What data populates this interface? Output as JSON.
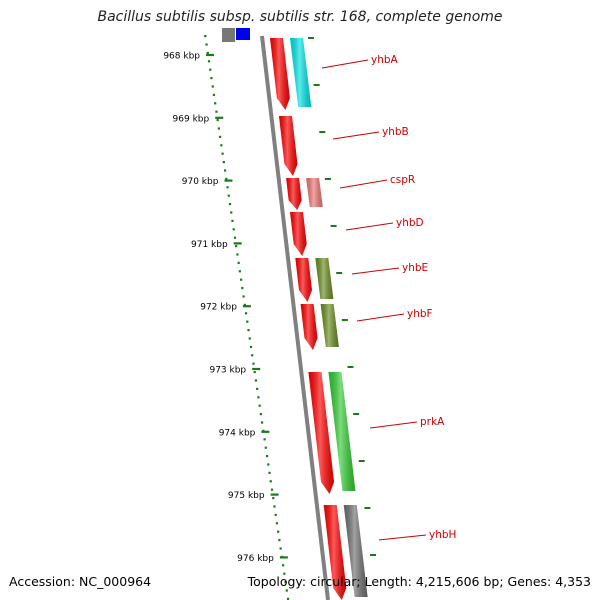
{
  "title": "Bacillus subtilis subsp. subtilis str. 168, complete genome",
  "footer": {
    "accession": "Accession: NC_000964",
    "summary": "Topology: circular; Length: 4,215,606 bp; Genes: 4,353"
  },
  "colors": {
    "tick": "#1a7a1a",
    "gene_label": "#cc0000",
    "backbone": "#808080",
    "cds": "#ff0000"
  },
  "ruler": [
    {
      "label": "968 kbp"
    },
    {
      "label": "969 kbp"
    },
    {
      "label": "970 kbp"
    },
    {
      "label": "971 kbp"
    },
    {
      "label": "972 kbp"
    },
    {
      "label": "973 kbp"
    },
    {
      "label": "974 kbp"
    },
    {
      "label": "975 kbp"
    },
    {
      "label": "976 kbp"
    }
  ],
  "genes": [
    {
      "name": "yhbA",
      "color": "#ff0000",
      "partner_color": "#00e5e5"
    },
    {
      "name": "yhbB",
      "color": "#ff0000",
      "partner_color": ""
    },
    {
      "name": "cspR",
      "color": "#ff0000",
      "partner_color": "#ee7777"
    },
    {
      "name": "yhbD",
      "color": "#ff0000",
      "partner_color": ""
    },
    {
      "name": "yhbE",
      "color": "#ff0000",
      "partner_color": "#6b8e23"
    },
    {
      "name": "yhbF",
      "color": "#ff0000",
      "partner_color": "#6b8e23"
    },
    {
      "name": "prkA",
      "color": "#ff0000",
      "partner_color": "#33cc33"
    },
    {
      "name": "yhbH",
      "color": "#ff0000",
      "partner_color": "#707070"
    }
  ],
  "top_features": [
    {
      "name": "gray-feature",
      "color": "#777777"
    },
    {
      "name": "blue-feature",
      "color": "#0000ee"
    }
  ]
}
